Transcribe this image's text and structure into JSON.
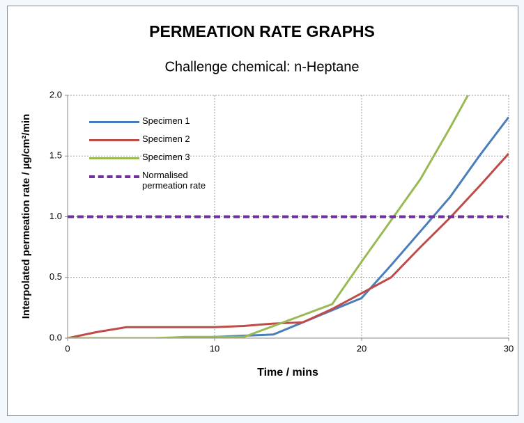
{
  "chart_data": {
    "type": "line",
    "title": "PERMEATION RATE GRAPHS",
    "subtitle": "Challenge chemical: n-Heptane",
    "x_label": "Time / mins",
    "y_label": "Interpolated permeation rate  / µg/cm²/min",
    "x": [
      0,
      2,
      4,
      6,
      8,
      10,
      12,
      14,
      16,
      18,
      20,
      22,
      24,
      26,
      28,
      30
    ],
    "series": [
      {
        "name": "Specimen 1",
        "color": "#4a7ebb",
        "dash": false,
        "values": [
          0,
          0,
          0,
          0,
          0,
          0.01,
          0.02,
          0.03,
          0.13,
          0.23,
          0.33,
          0.6,
          0.88,
          1.16,
          1.5,
          1.82
        ]
      },
      {
        "name": "Specimen 2",
        "color": "#be4b48",
        "dash": false,
        "values": [
          0,
          0.05,
          0.09,
          0.09,
          0.09,
          0.09,
          0.1,
          0.12,
          0.13,
          0.24,
          0.37,
          0.5,
          0.75,
          0.99,
          1.25,
          1.52
        ]
      },
      {
        "name": "Specimen 3",
        "color": "#98b954",
        "dash": false,
        "values": [
          0,
          0,
          0,
          0,
          0.01,
          0.01,
          0.01,
          0.1,
          0.19,
          0.28,
          0.63,
          0.97,
          1.31,
          1.73,
          2.17,
          null
        ]
      },
      {
        "name": "Normalised permeation rate",
        "color": "#7030a0",
        "dash": true,
        "values": [
          1,
          1,
          1,
          1,
          1,
          1,
          1,
          1,
          1,
          1,
          1,
          1,
          1,
          1,
          1,
          1
        ]
      }
    ],
    "xlim": [
      0,
      30
    ],
    "xticks": [
      0,
      10,
      20,
      30
    ],
    "ylim": [
      0,
      2
    ],
    "yticks": [
      {
        "value": 0,
        "label": "0.0"
      },
      {
        "value": 0.5,
        "label": "0.5"
      },
      {
        "value": 1,
        "label": "1.0"
      },
      {
        "value": 1.5,
        "label": "1.5"
      },
      {
        "value": 2,
        "label": "2.0"
      }
    ],
    "grid": true,
    "legend": "upper left"
  }
}
